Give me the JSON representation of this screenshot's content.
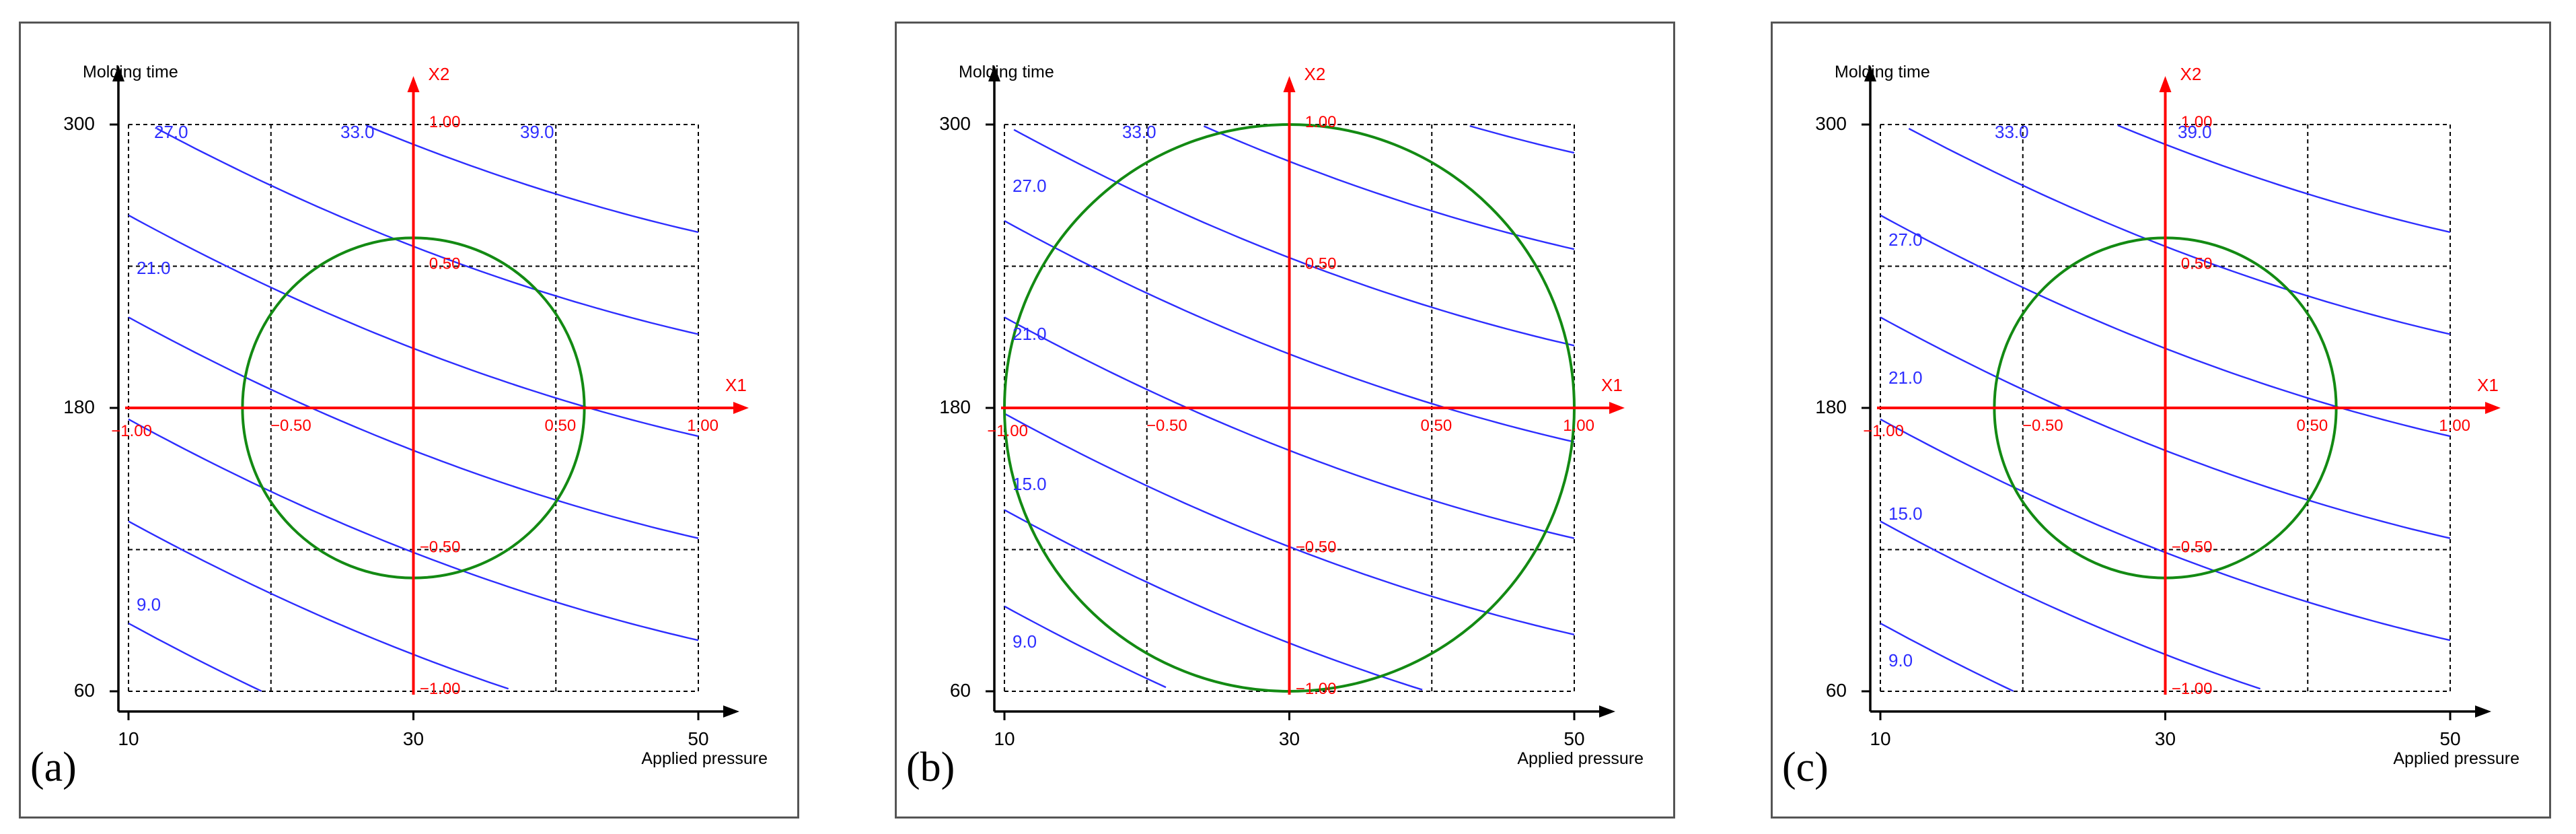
{
  "colors": {
    "contour": "#2d2dff",
    "coded_axes": "#ff0000",
    "region_circle": "#138a13",
    "grid": "#000000",
    "frame": "#000000"
  },
  "chart_data": [
    {
      "type": "contour",
      "panel_label": "(a)",
      "xlabel": "Applied pressure",
      "ylabel": "Molding time",
      "x_ticks": [
        "10",
        "30",
        "50"
      ],
      "y_ticks": [
        "300",
        "180",
        "60"
      ],
      "xlim": [
        10,
        50
      ],
      "ylim": [
        60,
        300
      ],
      "grid": true,
      "coded_axes": {
        "x_name": "X1",
        "y_name": "X2",
        "x_ticks": [
          "−1.00",
          "−0.50",
          "0.50",
          "1.00"
        ],
        "y_ticks": [
          "1.00",
          "0.50",
          "−0.50",
          "−1.00"
        ]
      },
      "region_circle": {
        "center": [
          0,
          0
        ],
        "radius_coded": 0.6
      },
      "contour_labels": [
        "27.0",
        "33.0",
        "39.0",
        "21.0",
        "9.0"
      ]
    },
    {
      "type": "contour",
      "panel_label": "(b)",
      "xlabel": "Applied pressure",
      "ylabel": "Molding time",
      "x_ticks": [
        "10",
        "30",
        "50"
      ],
      "y_ticks": [
        "300",
        "180",
        "60"
      ],
      "xlim": [
        10,
        50
      ],
      "ylim": [
        60,
        300
      ],
      "grid": true,
      "coded_axes": {
        "x_name": "X1",
        "y_name": "X2",
        "x_ticks": [
          "−1.00",
          "−0.50",
          "0.50",
          "1.00"
        ],
        "y_ticks": [
          "1.00",
          "0.50",
          "−0.50",
          "−1.00"
        ]
      },
      "region_circle": {
        "center": [
          0,
          0
        ],
        "radius_coded": 1.0
      },
      "contour_labels": [
        "33.0",
        "27.0",
        "21.0",
        "15.0",
        "9.0"
      ]
    },
    {
      "type": "contour",
      "panel_label": "(c)",
      "xlabel": "Applied pressure",
      "ylabel": "Molding time",
      "x_ticks": [
        "10",
        "30",
        "50"
      ],
      "y_ticks": [
        "300",
        "180",
        "60"
      ],
      "xlim": [
        10,
        50
      ],
      "ylim": [
        60,
        300
      ],
      "grid": true,
      "coded_axes": {
        "x_name": "X1",
        "y_name": "X2",
        "x_ticks": [
          "−1.00",
          "−0.50",
          "0.50",
          "1.00"
        ],
        "y_ticks": [
          "1.00",
          "0.50",
          "−0.50",
          "−1.00"
        ]
      },
      "region_circle": {
        "center": [
          0,
          0
        ],
        "radius_coded": 0.6
      },
      "contour_labels": [
        "33.0",
        "39.0",
        "27.0",
        "21.0",
        "15.0",
        "9.0"
      ]
    }
  ]
}
